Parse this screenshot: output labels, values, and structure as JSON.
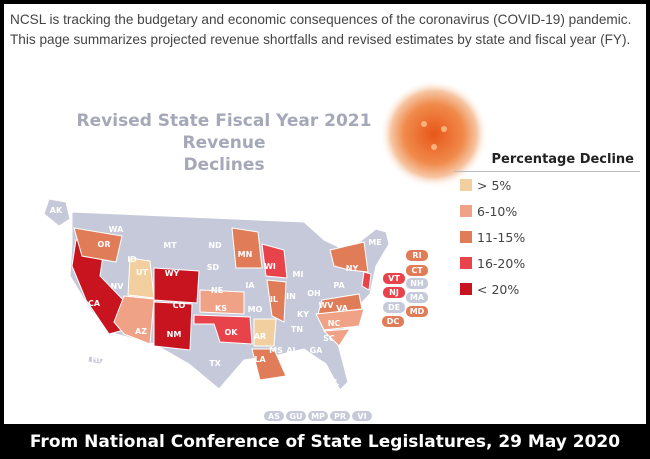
{
  "intro_text": "NCSL is tracking the budgetary and economic consequences of the coronavirus (COVID-19) pandemic. This page summarizes projected revenue shortfalls and revised estimates by state and fiscal year (FY).",
  "map": {
    "title_line1": "Revised State Fiscal Year 2021 Revenue",
    "title_line2": "Declines",
    "legend_title": "Percentage Decline",
    "legend": [
      {
        "label": "> 5%",
        "color": "#f2cf9f"
      },
      {
        "label": "6-10%",
        "color": "#f0a287"
      },
      {
        "label": "11-15%",
        "color": "#e07d58"
      },
      {
        "label": "16-20%",
        "color": "#e8424a"
      },
      {
        "label": "< 20%",
        "color": "#c8141e"
      }
    ],
    "no_data_color": "#c6c9d9",
    "states": {
      "AK": "",
      "WA": "",
      "OR": "",
      "CA": "",
      "NV": "",
      "ID": "",
      "MT": "",
      "WY": "",
      "UT": "",
      "AZ": "",
      "CO": "",
      "NM": "",
      "ND": "",
      "SD": "",
      "NE": "",
      "KS": "",
      "OK": "",
      "TX": "",
      "MN": "",
      "IA": "",
      "MO": "",
      "AR": "",
      "LA": "",
      "WI": "",
      "IL": "",
      "MI": "",
      "IN": "",
      "OH": "",
      "KY": "",
      "TN": "",
      "MS": "",
      "AL": "",
      "GA": "",
      "FL": "",
      "SC": "",
      "NC": "",
      "VA": "",
      "WV": "",
      "PA": "",
      "NY": "",
      "ME": "",
      "HI": ""
    },
    "small_states": [
      "RI",
      "CT",
      "VT",
      "NH",
      "NJ",
      "MA",
      "DE",
      "MD",
      "DC"
    ],
    "territories": [
      "AS",
      "GU",
      "MP",
      "PR",
      "VI"
    ]
  },
  "footer": "From National Conference of State Legislatures, 29 May 2020"
}
